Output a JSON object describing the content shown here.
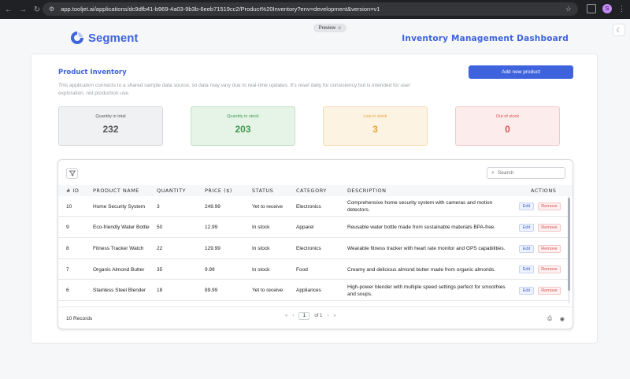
{
  "browser": {
    "url": "app.tooljet.ai/applications/dc9dfb41-b969-4a03-9b3b-6eeb71519cc2/Product%20Inventory?env=development&version=v1",
    "profile_initial": "S"
  },
  "app": {
    "preview_label": "Preview",
    "logo_text": "Segment",
    "dashboard_title": "Inventory Management Dashboard",
    "section_title": "Product Inventory",
    "description": "This application connects to a shared sample data source, so data may vary due to real-time updates. It's reset daily for consistency but is intended for user exploration, not production use.",
    "add_button": "Add new product",
    "accent": "#3e63dd"
  },
  "stats": [
    {
      "label": "Quantity in total",
      "value": "232",
      "color": "#555555",
      "bg": "#f0f1f3",
      "border": "#d6d8dc"
    },
    {
      "label": "Quantity in stock",
      "value": "203",
      "color": "#3d9a50",
      "bg": "#e6f4e8",
      "border": "#bfe0c4"
    },
    {
      "label": "Low in stock",
      "value": "3",
      "color": "#e5a437",
      "bg": "#fdf3e3",
      "border": "#f5dbb2"
    },
    {
      "label": "Out of stock",
      "value": "0",
      "color": "#d9534f",
      "bg": "#fdecec",
      "border": "#f3c9c9"
    }
  ],
  "table": {
    "search_placeholder": "Search",
    "columns": [
      "# ID",
      "PRODUCT NAME",
      "QUANTITY",
      "PRICE ($)",
      "STATUS",
      "CATEGORY",
      "DESCRIPTION",
      "ACTIONS"
    ],
    "rows": [
      {
        "id": "10",
        "name": "Home Security System",
        "quantity": "3",
        "price": "249.99",
        "status": "Yet to receive",
        "category": "Electronics",
        "description": "Comprehensive home security system with cameras and motion detectors."
      },
      {
        "id": "9",
        "name": "Eco-friendly Water Bottle",
        "quantity": "50",
        "price": "12.99",
        "status": "In stock",
        "category": "Apparel",
        "description": "Reusable water bottle made from sustainable materials BPA-free."
      },
      {
        "id": "8",
        "name": "Fitness Tracker Watch",
        "quantity": "22",
        "price": "129.99",
        "status": "In stock",
        "category": "Electronics",
        "description": "Wearable fitness tracker with heart rate monitor and GPS capabilities."
      },
      {
        "id": "7",
        "name": "Organic Almond Butter",
        "quantity": "35",
        "price": "9.99",
        "status": "In stock",
        "category": "Food",
        "description": "Creamy and delicious almond butter made from organic almonds."
      },
      {
        "id": "6",
        "name": "Stainless Steel Blender",
        "quantity": "18",
        "price": "89.99",
        "status": "Yet to receive",
        "category": "Appliances",
        "description": "High-power blender with multiple speed settings perfect for smoothies and soups."
      }
    ],
    "edit_label": "Edit",
    "remove_label": "Remove",
    "records_text": "10 Records",
    "page_current": "1",
    "page_of": "of 1"
  }
}
